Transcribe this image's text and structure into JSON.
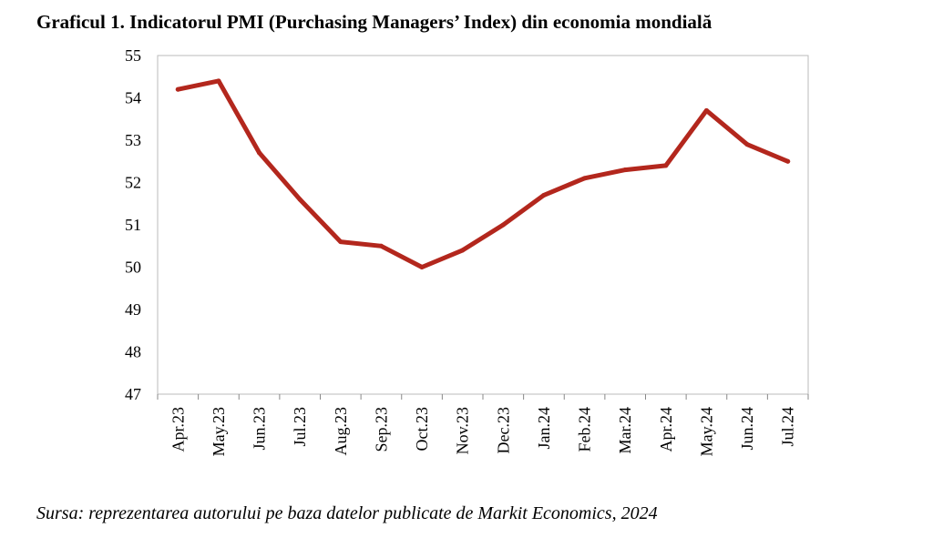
{
  "header": {
    "title": "Graficul 1. Indicatorul PMI (Purchasing Managers’ Index) din economia mondială"
  },
  "footer": {
    "source": "Sursa: reprezentarea autorului pe baza datelor publicate de Markit Economics, 2024"
  },
  "colors": {
    "line": "#b3271d",
    "axis": "#888888",
    "plot_border": "#bbbbbb"
  },
  "chart_data": {
    "type": "line",
    "title": "Graficul 1. Indicatorul PMI (Purchasing Managers’ Index) din economia mondială",
    "xlabel": "",
    "ylabel": "",
    "categories": [
      "Apr.23",
      "May.23",
      "Jun.23",
      "Jul.23",
      "Aug.23",
      "Sep.23",
      "Oct.23",
      "Nov.23",
      "Dec.23",
      "Jan.24",
      "Feb.24",
      "Mar.24",
      "Apr.24",
      "May.24",
      "Jun.24",
      "Jul.24"
    ],
    "series": [
      {
        "values": [
          54.2,
          54.4,
          52.7,
          51.6,
          50.6,
          50.5,
          50.0,
          50.4,
          51.0,
          51.7,
          52.1,
          52.3,
          52.4,
          53.7,
          52.9,
          52.5
        ]
      }
    ],
    "ylim": [
      47,
      55
    ],
    "yticks": [
      47,
      48,
      49,
      50,
      51,
      52,
      53,
      54,
      55
    ],
    "grid": false,
    "legend": "none"
  }
}
